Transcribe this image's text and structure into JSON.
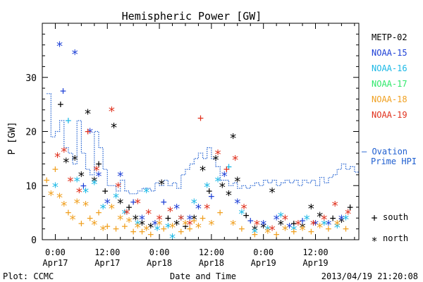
{
  "chart_data": {
    "type": "scatter",
    "title": "Hemispheric Power [GW]",
    "ylabel": "P [GW]",
    "xlabel": "Date and Time",
    "ylim": [
      0,
      40
    ],
    "yticks": [
      0,
      10,
      20,
      30
    ],
    "x_unit": "hours since 2013-04-17 00:00",
    "xlim": [
      -3,
      70
    ],
    "xticks": [
      {
        "x": 0,
        "time": "0:00",
        "date": "Apr17"
      },
      {
        "x": 12,
        "time": "12:00",
        "date": "Apr17"
      },
      {
        "x": 24,
        "time": "0:00",
        "date": "Apr18"
      },
      {
        "x": 36,
        "time": "12:00",
        "date": "Apr18"
      },
      {
        "x": 48,
        "time": "0:00",
        "date": "Apr19"
      },
      {
        "x": 60,
        "time": "12:00",
        "date": "Apr19"
      }
    ],
    "footer_left": "Plot: CCMC",
    "footer_right": "2013/04/19 21:20:08",
    "marker_legend": [
      {
        "marker": "+",
        "label": "south"
      },
      {
        "marker": "*",
        "label": "north"
      }
    ],
    "ovation": {
      "name": "-- Ovation Prime HPI",
      "label_line1": "– Ovation",
      "label_line2": "Prime HPI",
      "color": "#1f5fd0",
      "x": [
        -2,
        -1,
        0,
        1,
        2,
        3,
        4,
        5,
        6,
        7,
        8,
        9,
        10,
        11,
        12,
        13,
        14,
        15,
        16,
        17,
        18,
        19,
        20,
        21,
        22,
        23,
        24,
        25,
        26,
        27,
        28,
        29,
        30,
        31,
        32,
        33,
        34,
        35,
        36,
        37,
        38,
        39,
        40,
        41,
        42,
        43,
        44,
        45,
        46,
        47,
        48,
        49,
        50,
        51,
        52,
        53,
        54,
        55,
        56,
        57,
        58,
        59,
        60,
        61,
        62,
        63,
        64,
        65,
        66,
        67,
        68,
        69
      ],
      "y": [
        27,
        19,
        20,
        22,
        17,
        16,
        14,
        22,
        16,
        13,
        12,
        20,
        17,
        13,
        10,
        10,
        9,
        11,
        9,
        8.5,
        8.5,
        9,
        9.5,
        9.5,
        9,
        10.5,
        10,
        11,
        10,
        10.5,
        9.5,
        12,
        13,
        14,
        15,
        16,
        15,
        17,
        15,
        13.5,
        11,
        11,
        10,
        10.5,
        9.5,
        10,
        9.5,
        10,
        10.5,
        10,
        11,
        10.5,
        11,
        10,
        10.5,
        11,
        10.5,
        11,
        10,
        11,
        10.5,
        11,
        10,
        11.5,
        10.5,
        11.5,
        12,
        13,
        14,
        13,
        13.5,
        12.5
      ]
    },
    "series": [
      {
        "name": "METP-02",
        "color": "#000000",
        "points": [
          {
            "x": 1.2,
            "y": 25,
            "m": "+"
          },
          {
            "x": 2.5,
            "y": 14.5,
            "m": "*"
          },
          {
            "x": 4.5,
            "y": 15,
            "m": "*"
          },
          {
            "x": 6,
            "y": 12,
            "m": "*"
          },
          {
            "x": 7.5,
            "y": 23.5,
            "m": "*"
          },
          {
            "x": 9,
            "y": 11,
            "m": "*"
          },
          {
            "x": 10,
            "y": 14,
            "m": "+"
          },
          {
            "x": 11.5,
            "y": 9,
            "m": "+"
          },
          {
            "x": 13.5,
            "y": 21,
            "m": "*"
          },
          {
            "x": 15,
            "y": 7,
            "m": "*"
          },
          {
            "x": 17,
            "y": 6,
            "m": "+"
          },
          {
            "x": 18.5,
            "y": 4,
            "m": "*"
          },
          {
            "x": 20,
            "y": 3,
            "m": "*"
          },
          {
            "x": 22,
            "y": 2.5,
            "m": "*"
          },
          {
            "x": 24.5,
            "y": 10.5,
            "m": "*"
          },
          {
            "x": 26,
            "y": 4,
            "m": "+"
          },
          {
            "x": 28,
            "y": 3,
            "m": "*"
          },
          {
            "x": 30,
            "y": 2.5,
            "m": "+"
          },
          {
            "x": 32,
            "y": 4,
            "m": "*"
          },
          {
            "x": 34,
            "y": 13,
            "m": "*"
          },
          {
            "x": 35.5,
            "y": 9,
            "m": "+"
          },
          {
            "x": 37,
            "y": 15,
            "m": "*"
          },
          {
            "x": 38.5,
            "y": 10,
            "m": "*"
          },
          {
            "x": 40,
            "y": 8.5,
            "m": "*"
          },
          {
            "x": 41,
            "y": 19,
            "m": "*"
          },
          {
            "x": 42,
            "y": 11,
            "m": "*"
          },
          {
            "x": 44,
            "y": 4.5,
            "m": "+"
          },
          {
            "x": 46,
            "y": 2,
            "m": "*"
          },
          {
            "x": 48,
            "y": 2.5,
            "m": "*"
          },
          {
            "x": 50,
            "y": 9,
            "m": "*"
          },
          {
            "x": 52,
            "y": 3,
            "m": "*"
          },
          {
            "x": 55,
            "y": 3,
            "m": "+"
          },
          {
            "x": 57,
            "y": 2.5,
            "m": "*"
          },
          {
            "x": 59,
            "y": 6,
            "m": "*"
          },
          {
            "x": 61,
            "y": 4.5,
            "m": "*"
          },
          {
            "x": 64,
            "y": 4,
            "m": "+"
          },
          {
            "x": 66,
            "y": 3.5,
            "m": "*"
          },
          {
            "x": 68,
            "y": 6,
            "m": "+"
          }
        ]
      },
      {
        "name": "NOAA-15",
        "color": "#1c3fd6",
        "points": [
          {
            "x": 1,
            "y": 36,
            "m": "*"
          },
          {
            "x": 1.8,
            "y": 27.5,
            "m": "+"
          },
          {
            "x": 4.5,
            "y": 34.5,
            "m": "*"
          },
          {
            "x": 6.5,
            "y": 10,
            "m": "+"
          },
          {
            "x": 8,
            "y": 20,
            "m": "*"
          },
          {
            "x": 10,
            "y": 12,
            "m": "*"
          },
          {
            "x": 12,
            "y": 7,
            "m": "*"
          },
          {
            "x": 15,
            "y": 12,
            "m": "*"
          },
          {
            "x": 18,
            "y": 7,
            "m": "+"
          },
          {
            "x": 20,
            "y": 4,
            "m": "*"
          },
          {
            "x": 23,
            "y": 3,
            "m": "*"
          },
          {
            "x": 25,
            "y": 7,
            "m": "+"
          },
          {
            "x": 28,
            "y": 6,
            "m": "*"
          },
          {
            "x": 31,
            "y": 4,
            "m": "*"
          },
          {
            "x": 33,
            "y": 6,
            "m": "*"
          },
          {
            "x": 36,
            "y": 8,
            "m": "+"
          },
          {
            "x": 39,
            "y": 12,
            "m": "*"
          },
          {
            "x": 42,
            "y": 7,
            "m": "*"
          },
          {
            "x": 45,
            "y": 3.5,
            "m": "+"
          },
          {
            "x": 48,
            "y": 3,
            "m": "*"
          },
          {
            "x": 51,
            "y": 4,
            "m": "*"
          },
          {
            "x": 54,
            "y": 2.5,
            "m": "*"
          },
          {
            "x": 57,
            "y": 3.5,
            "m": "+"
          },
          {
            "x": 60,
            "y": 3,
            "m": "*"
          },
          {
            "x": 63,
            "y": 3,
            "m": "*"
          },
          {
            "x": 66,
            "y": 4,
            "m": "*"
          }
        ]
      },
      {
        "name": "NOAA-16",
        "color": "#1ab8e6",
        "points": [
          {
            "x": 0,
            "y": 10,
            "m": "*"
          },
          {
            "x": 3,
            "y": 22,
            "m": "+"
          },
          {
            "x": 5,
            "y": 11,
            "m": "*"
          },
          {
            "x": 7,
            "y": 9,
            "m": "*"
          },
          {
            "x": 9,
            "y": 10.5,
            "m": "*"
          },
          {
            "x": 11,
            "y": 6,
            "m": "*"
          },
          {
            "x": 14,
            "y": 8,
            "m": "*"
          },
          {
            "x": 16,
            "y": 5,
            "m": "*"
          },
          {
            "x": 19,
            "y": 3,
            "m": "*"
          },
          {
            "x": 21,
            "y": 9,
            "m": "*"
          },
          {
            "x": 23.5,
            "y": 2,
            "m": "*"
          },
          {
            "x": 26,
            "y": 2.5,
            "m": "*"
          },
          {
            "x": 27,
            "y": 0.5,
            "m": "*"
          },
          {
            "x": 29,
            "y": 4,
            "m": "*"
          },
          {
            "x": 32,
            "y": 7,
            "m": "*"
          },
          {
            "x": 35,
            "y": 10,
            "m": "*"
          },
          {
            "x": 37.5,
            "y": 11,
            "m": "*"
          },
          {
            "x": 40,
            "y": 13.5,
            "m": "+"
          },
          {
            "x": 43,
            "y": 5,
            "m": "*"
          },
          {
            "x": 46,
            "y": 1.5,
            "m": "*"
          },
          {
            "x": 49,
            "y": 2,
            "m": "*"
          },
          {
            "x": 52,
            "y": 4.5,
            "m": "*"
          },
          {
            "x": 55,
            "y": 2,
            "m": "*"
          },
          {
            "x": 58,
            "y": 4,
            "m": "*"
          },
          {
            "x": 62,
            "y": 3,
            "m": "*"
          },
          {
            "x": 65,
            "y": 2.5,
            "m": "*"
          },
          {
            "x": 67,
            "y": 4,
            "m": "*"
          }
        ]
      },
      {
        "name": "NOAA-17",
        "color": "#2ee86a",
        "points": []
      },
      {
        "name": "NOAA-18",
        "color": "#f0a020",
        "points": [
          {
            "x": -2,
            "y": 11,
            "m": "+"
          },
          {
            "x": -1,
            "y": 8.5,
            "m": "*"
          },
          {
            "x": 0,
            "y": 13,
            "m": "+"
          },
          {
            "x": 1,
            "y": 8,
            "m": "*"
          },
          {
            "x": 2,
            "y": 6.5,
            "m": "*"
          },
          {
            "x": 3,
            "y": 5,
            "m": "+"
          },
          {
            "x": 4,
            "y": 4,
            "m": "*"
          },
          {
            "x": 5,
            "y": 7,
            "m": "*"
          },
          {
            "x": 6,
            "y": 3,
            "m": "+"
          },
          {
            "x": 7,
            "y": 6.5,
            "m": "*"
          },
          {
            "x": 8,
            "y": 4,
            "m": "+"
          },
          {
            "x": 9,
            "y": 3,
            "m": "*"
          },
          {
            "x": 10,
            "y": 5,
            "m": "+"
          },
          {
            "x": 11,
            "y": 2,
            "m": "*"
          },
          {
            "x": 12,
            "y": 2.5,
            "m": "+"
          },
          {
            "x": 13,
            "y": 6,
            "m": "*"
          },
          {
            "x": 14,
            "y": 2,
            "m": "+"
          },
          {
            "x": 15,
            "y": 4,
            "m": "*"
          },
          {
            "x": 16,
            "y": 2.5,
            "m": "+"
          },
          {
            "x": 17,
            "y": 3.5,
            "m": "*"
          },
          {
            "x": 18,
            "y": 1.5,
            "m": "+"
          },
          {
            "x": 19,
            "y": 2.5,
            "m": "*"
          },
          {
            "x": 20,
            "y": 1.5,
            "m": "+"
          },
          {
            "x": 21,
            "y": 2,
            "m": "*"
          },
          {
            "x": 22,
            "y": 1,
            "m": "+"
          },
          {
            "x": 24,
            "y": 3,
            "m": "*"
          },
          {
            "x": 25,
            "y": 2,
            "m": "+"
          },
          {
            "x": 27,
            "y": 2.5,
            "m": "*"
          },
          {
            "x": 29,
            "y": 1.5,
            "m": "+"
          },
          {
            "x": 30,
            "y": 3,
            "m": "*"
          },
          {
            "x": 31,
            "y": 2,
            "m": "+"
          },
          {
            "x": 32,
            "y": 3.5,
            "m": "+"
          },
          {
            "x": 33,
            "y": 2.5,
            "m": "*"
          },
          {
            "x": 34,
            "y": 4,
            "m": "+"
          },
          {
            "x": 36,
            "y": 3,
            "m": "*"
          },
          {
            "x": 38,
            "y": 5,
            "m": "+"
          },
          {
            "x": 41,
            "y": 3,
            "m": "*"
          },
          {
            "x": 43,
            "y": 2,
            "m": "+"
          },
          {
            "x": 46,
            "y": 1,
            "m": "+"
          },
          {
            "x": 49,
            "y": 1.5,
            "m": "*"
          },
          {
            "x": 51,
            "y": 1,
            "m": "+"
          },
          {
            "x": 53,
            "y": 2,
            "m": "*"
          },
          {
            "x": 55,
            "y": 1.5,
            "m": "+"
          },
          {
            "x": 57,
            "y": 2,
            "m": "*"
          },
          {
            "x": 59,
            "y": 1.5,
            "m": "+"
          },
          {
            "x": 61,
            "y": 2.5,
            "m": "*"
          },
          {
            "x": 63,
            "y": 2,
            "m": "+"
          },
          {
            "x": 65,
            "y": 3,
            "m": "*"
          },
          {
            "x": 67,
            "y": 2,
            "m": "+"
          }
        ]
      },
      {
        "name": "NOAA-19",
        "color": "#e0301c",
        "points": [
          {
            "x": 0.5,
            "y": 15.5,
            "m": "*"
          },
          {
            "x": 2,
            "y": 16.5,
            "m": "*"
          },
          {
            "x": 3.5,
            "y": 11,
            "m": "*"
          },
          {
            "x": 5.5,
            "y": 9,
            "m": "*"
          },
          {
            "x": 7.5,
            "y": 20,
            "m": "+"
          },
          {
            "x": 9.5,
            "y": 13,
            "m": "*"
          },
          {
            "x": 13,
            "y": 24,
            "m": "*"
          },
          {
            "x": 14.5,
            "y": 10,
            "m": "*"
          },
          {
            "x": 16.5,
            "y": 5,
            "m": "*"
          },
          {
            "x": 19,
            "y": 7,
            "m": "*"
          },
          {
            "x": 21.5,
            "y": 5,
            "m": "*"
          },
          {
            "x": 24,
            "y": 4,
            "m": "*"
          },
          {
            "x": 26.5,
            "y": 5.5,
            "m": "*"
          },
          {
            "x": 29,
            "y": 4,
            "m": "*"
          },
          {
            "x": 31,
            "y": 3,
            "m": "*"
          },
          {
            "x": 33.5,
            "y": 22.5,
            "m": "+"
          },
          {
            "x": 35,
            "y": 6,
            "m": "*"
          },
          {
            "x": 37.5,
            "y": 16,
            "m": "*"
          },
          {
            "x": 39.5,
            "y": 13,
            "m": "+"
          },
          {
            "x": 41.5,
            "y": 15,
            "m": "*"
          },
          {
            "x": 43.5,
            "y": 6,
            "m": "*"
          },
          {
            "x": 46.5,
            "y": 3,
            "m": "*"
          },
          {
            "x": 50,
            "y": 2,
            "m": "*"
          },
          {
            "x": 53,
            "y": 4,
            "m": "*"
          },
          {
            "x": 56,
            "y": 3,
            "m": "*"
          },
          {
            "x": 59.5,
            "y": 3,
            "m": "*"
          },
          {
            "x": 62,
            "y": 4,
            "m": "*"
          },
          {
            "x": 64.5,
            "y": 6.5,
            "m": "*"
          },
          {
            "x": 67.5,
            "y": 5,
            "m": "*"
          }
        ]
      }
    ]
  }
}
